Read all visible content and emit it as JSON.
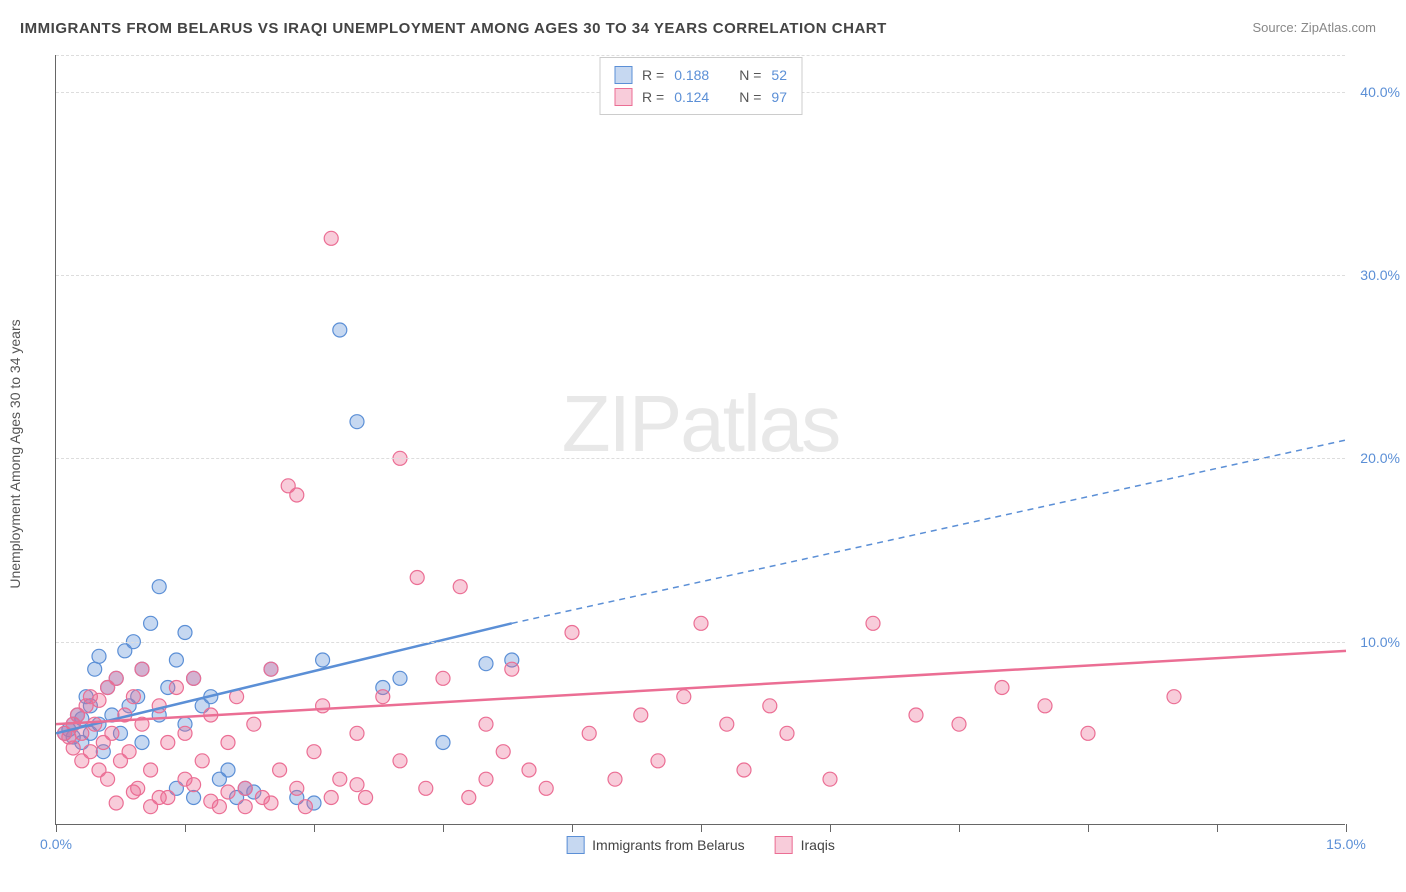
{
  "title": "IMMIGRANTS FROM BELARUS VS IRAQI UNEMPLOYMENT AMONG AGES 30 TO 34 YEARS CORRELATION CHART",
  "source": "Source: ZipAtlas.com",
  "y_axis_label": "Unemployment Among Ages 30 to 34 years",
  "watermark": {
    "zip": "ZIP",
    "atlas": "atlas"
  },
  "chart": {
    "type": "scatter",
    "background_color": "#ffffff",
    "grid_color": "#dddddd",
    "axis_color": "#666666",
    "xlim": [
      0,
      15
    ],
    "ylim": [
      0,
      42
    ],
    "x_ticks": [
      0,
      1.5,
      3,
      4.5,
      6,
      7.5,
      9,
      10.5,
      12,
      13.5,
      15
    ],
    "x_tick_labels": {
      "0": "0.0%",
      "15": "15.0%"
    },
    "y_ticks": [
      10,
      20,
      30,
      40
    ],
    "y_tick_labels": [
      "10.0%",
      "20.0%",
      "30.0%",
      "40.0%"
    ],
    "marker_radius": 7,
    "marker_fill_opacity": 0.35,
    "marker_stroke_width": 1.2,
    "series": [
      {
        "name": "Immigrants from Belarus",
        "color": "#5b8fd6",
        "r": "0.188",
        "n": "52",
        "regression": {
          "x1": 0,
          "y1": 5,
          "x2": 5.3,
          "y2": 11,
          "x_solid_end": 5.3,
          "x_dash_end": 15,
          "y_dash_end": 21
        },
        "points": [
          [
            0.1,
            5.0
          ],
          [
            0.15,
            5.2
          ],
          [
            0.2,
            4.8
          ],
          [
            0.2,
            5.5
          ],
          [
            0.25,
            6.0
          ],
          [
            0.3,
            4.5
          ],
          [
            0.3,
            5.8
          ],
          [
            0.35,
            7.0
          ],
          [
            0.4,
            5.0
          ],
          [
            0.4,
            6.5
          ],
          [
            0.45,
            8.5
          ],
          [
            0.5,
            5.5
          ],
          [
            0.5,
            9.2
          ],
          [
            0.55,
            4.0
          ],
          [
            0.6,
            7.5
          ],
          [
            0.65,
            6.0
          ],
          [
            0.7,
            8.0
          ],
          [
            0.75,
            5.0
          ],
          [
            0.8,
            9.5
          ],
          [
            0.85,
            6.5
          ],
          [
            0.9,
            10.0
          ],
          [
            0.95,
            7.0
          ],
          [
            1.0,
            8.5
          ],
          [
            1.0,
            4.5
          ],
          [
            1.1,
            11.0
          ],
          [
            1.2,
            6.0
          ],
          [
            1.2,
            13.0
          ],
          [
            1.3,
            7.5
          ],
          [
            1.4,
            9.0
          ],
          [
            1.5,
            5.5
          ],
          [
            1.5,
            10.5
          ],
          [
            1.6,
            8.0
          ],
          [
            1.7,
            6.5
          ],
          [
            1.8,
            7.0
          ],
          [
            1.9,
            2.5
          ],
          [
            2.0,
            3.0
          ],
          [
            2.1,
            1.5
          ],
          [
            2.2,
            2.0
          ],
          [
            2.3,
            1.8
          ],
          [
            2.5,
            8.5
          ],
          [
            2.8,
            1.5
          ],
          [
            3.0,
            1.2
          ],
          [
            3.1,
            9.0
          ],
          [
            3.3,
            27.0
          ],
          [
            3.5,
            22.0
          ],
          [
            3.8,
            7.5
          ],
          [
            4.0,
            8.0
          ],
          [
            4.5,
            4.5
          ],
          [
            5.0,
            8.8
          ],
          [
            5.3,
            9.0
          ],
          [
            1.4,
            2.0
          ],
          [
            1.6,
            1.5
          ]
        ]
      },
      {
        "name": "Iraqis",
        "color": "#eb6e94",
        "r": "0.124",
        "n": "97",
        "regression": {
          "x1": 0,
          "y1": 5.5,
          "x2": 15,
          "y2": 9.5,
          "x_solid_end": 15,
          "x_dash_end": 15,
          "y_dash_end": 9.5
        },
        "points": [
          [
            0.1,
            5.0
          ],
          [
            0.15,
            4.8
          ],
          [
            0.2,
            5.5
          ],
          [
            0.2,
            4.2
          ],
          [
            0.25,
            6.0
          ],
          [
            0.3,
            5.0
          ],
          [
            0.3,
            3.5
          ],
          [
            0.35,
            6.5
          ],
          [
            0.4,
            4.0
          ],
          [
            0.4,
            7.0
          ],
          [
            0.45,
            5.5
          ],
          [
            0.5,
            3.0
          ],
          [
            0.5,
            6.8
          ],
          [
            0.55,
            4.5
          ],
          [
            0.6,
            7.5
          ],
          [
            0.6,
            2.5
          ],
          [
            0.65,
            5.0
          ],
          [
            0.7,
            8.0
          ],
          [
            0.75,
            3.5
          ],
          [
            0.8,
            6.0
          ],
          [
            0.85,
            4.0
          ],
          [
            0.9,
            7.0
          ],
          [
            0.95,
            2.0
          ],
          [
            1.0,
            5.5
          ],
          [
            1.0,
            8.5
          ],
          [
            1.1,
            3.0
          ],
          [
            1.2,
            6.5
          ],
          [
            1.2,
            1.5
          ],
          [
            1.3,
            4.5
          ],
          [
            1.4,
            7.5
          ],
          [
            1.5,
            2.5
          ],
          [
            1.5,
            5.0
          ],
          [
            1.6,
            8.0
          ],
          [
            1.7,
            3.5
          ],
          [
            1.8,
            6.0
          ],
          [
            1.9,
            1.0
          ],
          [
            2.0,
            4.5
          ],
          [
            2.1,
            7.0
          ],
          [
            2.2,
            2.0
          ],
          [
            2.3,
            5.5
          ],
          [
            2.4,
            1.5
          ],
          [
            2.5,
            8.5
          ],
          [
            2.6,
            3.0
          ],
          [
            2.7,
            18.5
          ],
          [
            2.8,
            18.0
          ],
          [
            2.9,
            1.0
          ],
          [
            3.0,
            4.0
          ],
          [
            3.1,
            6.5
          ],
          [
            3.2,
            32.0
          ],
          [
            3.3,
            2.5
          ],
          [
            3.5,
            5.0
          ],
          [
            3.6,
            1.5
          ],
          [
            3.8,
            7.0
          ],
          [
            4.0,
            20.0
          ],
          [
            4.0,
            3.5
          ],
          [
            4.2,
            13.5
          ],
          [
            4.3,
            2.0
          ],
          [
            4.5,
            8.0
          ],
          [
            4.7,
            13.0
          ],
          [
            4.8,
            1.5
          ],
          [
            5.0,
            5.5
          ],
          [
            5.0,
            2.5
          ],
          [
            5.2,
            4.0
          ],
          [
            5.3,
            8.5
          ],
          [
            5.5,
            3.0
          ],
          [
            5.7,
            2.0
          ],
          [
            6.0,
            10.5
          ],
          [
            6.2,
            5.0
          ],
          [
            6.5,
            2.5
          ],
          [
            6.8,
            6.0
          ],
          [
            7.0,
            3.5
          ],
          [
            7.3,
            7.0
          ],
          [
            7.5,
            11.0
          ],
          [
            7.8,
            5.5
          ],
          [
            8.0,
            3.0
          ],
          [
            8.3,
            6.5
          ],
          [
            8.5,
            5.0
          ],
          [
            9.0,
            2.5
          ],
          [
            9.5,
            11.0
          ],
          [
            10.0,
            6.0
          ],
          [
            10.5,
            5.5
          ],
          [
            11.0,
            7.5
          ],
          [
            11.5,
            6.5
          ],
          [
            12.0,
            5.0
          ],
          [
            13.0,
            7.0
          ],
          [
            0.7,
            1.2
          ],
          [
            0.9,
            1.8
          ],
          [
            1.1,
            1.0
          ],
          [
            1.3,
            1.5
          ],
          [
            1.6,
            2.2
          ],
          [
            1.8,
            1.3
          ],
          [
            2.0,
            1.8
          ],
          [
            2.2,
            1.0
          ],
          [
            2.5,
            1.2
          ],
          [
            2.8,
            2.0
          ],
          [
            3.2,
            1.5
          ],
          [
            3.5,
            2.2
          ]
        ]
      }
    ]
  },
  "legend_top": {
    "r_label": "R =",
    "n_label": "N ="
  },
  "legend_bottom": {
    "series1_label": "Immigrants from Belarus",
    "series2_label": "Iraqis"
  }
}
